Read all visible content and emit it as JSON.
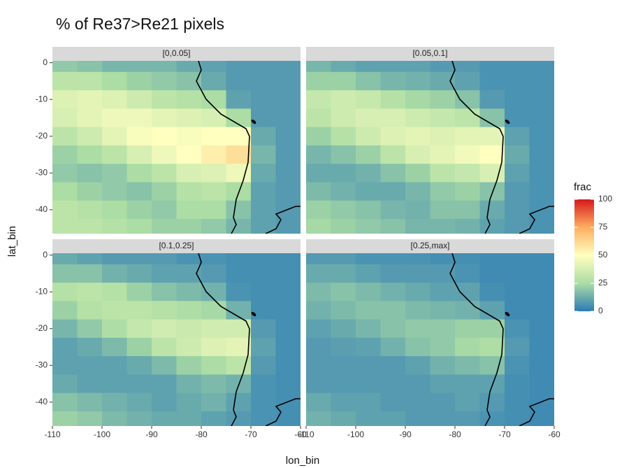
{
  "chart_data": {
    "type": "heatmap",
    "title": "% of Re37>Re21 pixels",
    "xlabel": "lon_bin",
    "ylabel": "lat_bin",
    "xlim": [
      -110,
      -60
    ],
    "ylim": [
      -46.5,
      0.5
    ],
    "xticks": [
      -110,
      -100,
      -90,
      -80,
      -70,
      -60
    ],
    "yticks": [
      0,
      -10,
      -20,
      -30,
      -40
    ],
    "x": [
      -107.5,
      -102.5,
      -97.5,
      -92.5,
      -87.5,
      -82.5,
      -77.5,
      -72.5,
      -67.5,
      -62.5
    ],
    "y": [
      0,
      -5,
      -10,
      -15,
      -20,
      -25,
      -30,
      -35,
      -40,
      -45
    ],
    "panels": [
      {
        "name": "[0,0.05]",
        "z": [
          [
            20,
            18,
            15,
            15,
            15,
            12,
            10,
            8,
            8,
            8
          ],
          [
            30,
            30,
            25,
            22,
            20,
            18,
            12,
            8,
            8,
            8
          ],
          [
            40,
            42,
            40,
            35,
            30,
            28,
            25,
            10,
            8,
            8
          ],
          [
            38,
            42,
            45,
            45,
            42,
            40,
            38,
            25,
            8,
            8
          ],
          [
            30,
            35,
            42,
            48,
            50,
            48,
            50,
            50,
            12,
            8
          ],
          [
            22,
            25,
            30,
            38,
            45,
            50,
            55,
            60,
            15,
            8
          ],
          [
            20,
            18,
            20,
            25,
            30,
            38,
            40,
            45,
            12,
            8
          ],
          [
            25,
            22,
            20,
            18,
            22,
            28,
            30,
            25,
            10,
            8
          ],
          [
            30,
            28,
            25,
            22,
            20,
            25,
            25,
            18,
            10,
            8
          ],
          [
            30,
            30,
            28,
            25,
            22,
            22,
            20,
            15,
            10,
            8
          ]
        ]
      },
      {
        "name": "[0.05,0.1]",
        "z": [
          [
            15,
            12,
            10,
            10,
            10,
            8,
            8,
            6,
            6,
            6
          ],
          [
            22,
            22,
            18,
            15,
            14,
            12,
            10,
            6,
            6,
            6
          ],
          [
            32,
            35,
            33,
            28,
            24,
            22,
            18,
            8,
            6,
            6
          ],
          [
            30,
            35,
            38,
            38,
            35,
            32,
            30,
            18,
            6,
            6
          ],
          [
            22,
            28,
            35,
            40,
            42,
            40,
            42,
            42,
            10,
            6
          ],
          [
            15,
            18,
            22,
            30,
            38,
            42,
            46,
            50,
            12,
            6
          ],
          [
            12,
            12,
            14,
            18,
            22,
            30,
            32,
            38,
            10,
            6
          ],
          [
            16,
            14,
            12,
            12,
            15,
            20,
            22,
            18,
            8,
            6
          ],
          [
            22,
            20,
            18,
            15,
            14,
            18,
            18,
            12,
            8,
            6
          ],
          [
            24,
            22,
            20,
            18,
            15,
            15,
            14,
            10,
            8,
            6
          ]
        ]
      },
      {
        "name": "[0.1,0.25]",
        "z": [
          [
            12,
            10,
            8,
            8,
            8,
            6,
            6,
            5,
            5,
            5
          ],
          [
            18,
            18,
            14,
            12,
            10,
            10,
            8,
            5,
            5,
            5
          ],
          [
            28,
            30,
            28,
            22,
            18,
            16,
            14,
            6,
            5,
            5
          ],
          [
            22,
            28,
            30,
            30,
            28,
            26,
            24,
            14,
            5,
            5
          ],
          [
            15,
            20,
            26,
            32,
            36,
            34,
            36,
            36,
            8,
            5
          ],
          [
            10,
            12,
            16,
            22,
            30,
            35,
            40,
            42,
            10,
            5
          ],
          [
            10,
            10,
            10,
            12,
            16,
            22,
            25,
            30,
            8,
            5
          ],
          [
            12,
            10,
            10,
            10,
            10,
            14,
            16,
            14,
            6,
            5
          ],
          [
            18,
            16,
            14,
            12,
            10,
            12,
            14,
            10,
            6,
            5
          ],
          [
            22,
            20,
            16,
            14,
            12,
            12,
            10,
            8,
            6,
            5
          ]
        ]
      },
      {
        "name": "[0.25,max]",
        "z": [
          [
            8,
            8,
            6,
            6,
            6,
            5,
            5,
            4,
            4,
            4
          ],
          [
            12,
            12,
            10,
            8,
            8,
            8,
            6,
            4,
            4,
            4
          ],
          [
            16,
            18,
            16,
            14,
            12,
            10,
            10,
            5,
            4,
            4
          ],
          [
            14,
            16,
            18,
            18,
            16,
            15,
            14,
            10,
            4,
            4
          ],
          [
            10,
            12,
            15,
            18,
            20,
            20,
            22,
            22,
            6,
            4
          ],
          [
            8,
            9,
            10,
            14,
            18,
            20,
            24,
            26,
            8,
            4
          ],
          [
            8,
            8,
            8,
            8,
            10,
            14,
            16,
            18,
            6,
            4
          ],
          [
            8,
            8,
            8,
            8,
            8,
            10,
            10,
            10,
            5,
            4
          ],
          [
            12,
            10,
            10,
            8,
            8,
            8,
            10,
            8,
            5,
            4
          ],
          [
            14,
            12,
            10,
            10,
            8,
            8,
            8,
            6,
            5,
            4
          ]
        ]
      }
    ],
    "colorbar": {
      "title": "frac",
      "lim": [
        0,
        100
      ],
      "ticks": [
        0,
        25,
        50,
        75,
        100
      ],
      "colors": [
        "#2c7bb6",
        "#abdda4",
        "#ffffbf",
        "#fdae61",
        "#d7191c"
      ]
    }
  }
}
